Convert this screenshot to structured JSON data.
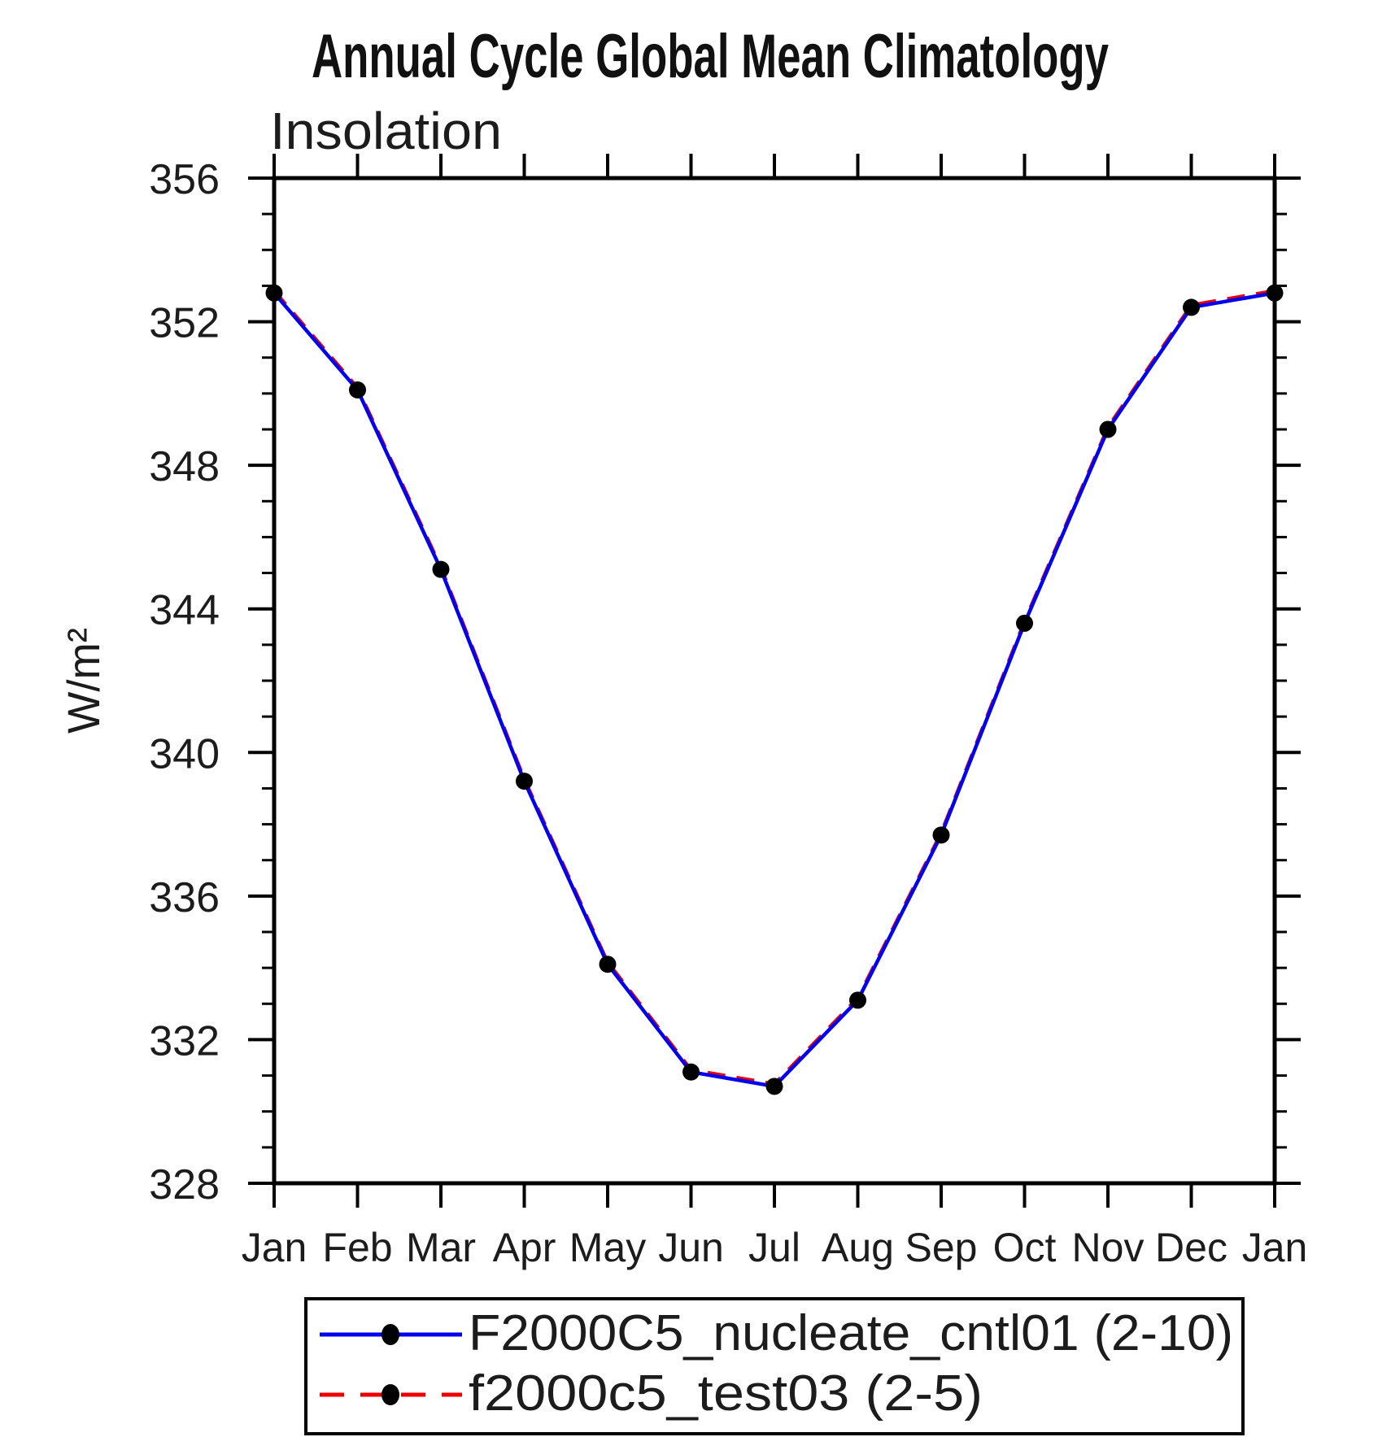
{
  "page": {
    "background": "#ffffff"
  },
  "chart_data": {
    "type": "line",
    "title": "Annual Cycle Global Mean Climatology",
    "subtitle": "Insolation",
    "ylabel": "W/m²",
    "xlabel": "",
    "categories": [
      "Jan",
      "Feb",
      "Mar",
      "Apr",
      "May",
      "Jun",
      "Jul",
      "Aug",
      "Sep",
      "Oct",
      "Nov",
      "Dec",
      "Jan"
    ],
    "ylim": [
      328,
      356
    ],
    "ytick_major_step": 4,
    "ytick_minor_step": 1,
    "ytick_labels": [
      "328",
      "332",
      "336",
      "340",
      "344",
      "348",
      "352",
      "356"
    ],
    "grid": "off",
    "legend_position": "bottom",
    "frame_color": "#000000",
    "series": [
      {
        "name": "F2000C5_nucleate_cntl01 (2-10)",
        "color": "#0000ee",
        "line_style": "solid",
        "marker": "filled-circle",
        "marker_color": "#000000",
        "values": [
          352.8,
          350.1,
          345.1,
          339.2,
          334.1,
          331.1,
          330.7,
          333.1,
          337.7,
          343.6,
          349.0,
          352.4,
          352.8
        ]
      },
      {
        "name": "f2000c5_test03 (2-5)",
        "color": "#ee0000",
        "line_style": "dashed",
        "marker": "filled-circle",
        "marker_color": "#000000",
        "overlaps_series_0": true,
        "values": [
          352.8,
          350.1,
          345.1,
          339.2,
          334.1,
          331.1,
          330.7,
          333.1,
          337.7,
          343.6,
          349.0,
          352.4,
          352.8
        ]
      }
    ]
  }
}
